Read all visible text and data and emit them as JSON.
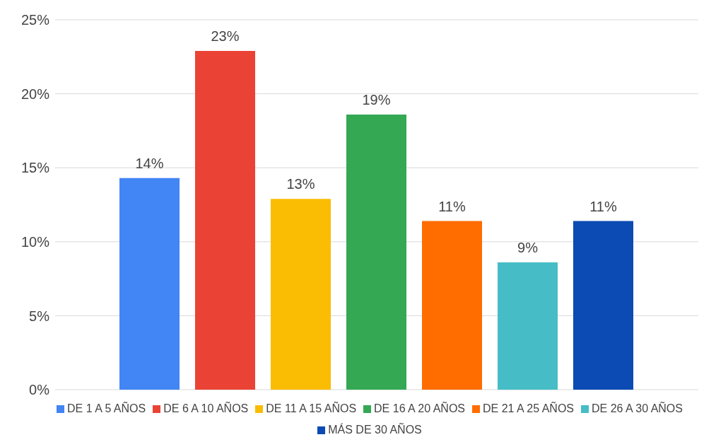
{
  "chart_data": {
    "type": "bar",
    "categories": [
      null
    ],
    "series": [
      {
        "name": "DE 1 A 5 AÑOS",
        "color": "#4285f4",
        "values": [
          14.3
        ],
        "value_labels": [
          "14%"
        ]
      },
      {
        "name": "DE 6 A 10 AÑOS",
        "color": "#ea4335",
        "values": [
          22.9
        ],
        "value_labels": [
          "23%"
        ]
      },
      {
        "name": "DE 11 A 15 AÑOS",
        "color": "#fbbc04",
        "values": [
          12.9
        ],
        "value_labels": [
          "13%"
        ]
      },
      {
        "name": "DE 16 A 20 AÑOS",
        "color": "#34a853",
        "values": [
          18.6
        ],
        "value_labels": [
          "19%"
        ]
      },
      {
        "name": "DE 21 A 25 AÑOS",
        "color": "#ff6d01",
        "values": [
          11.4
        ],
        "value_labels": [
          "11%"
        ]
      },
      {
        "name": "DE 26 A 30 AÑOS",
        "color": "#46bdc6",
        "values": [
          8.6
        ],
        "value_labels": [
          "9%"
        ]
      },
      {
        "name": "MÁS DE 30 AÑOS",
        "color": "#0b4bb3",
        "values": [
          11.4
        ],
        "value_labels": [
          "11%"
        ]
      }
    ],
    "ylim": [
      0,
      25
    ],
    "yticks": [
      {
        "value": 0,
        "label": "0%"
      },
      {
        "value": 5,
        "label": "5%"
      },
      {
        "value": 10,
        "label": "10%"
      },
      {
        "value": 15,
        "label": "15%"
      },
      {
        "value": 20,
        "label": "20%"
      },
      {
        "value": 25,
        "label": "25%"
      }
    ],
    "grid": "y",
    "legend": "bottom"
  }
}
